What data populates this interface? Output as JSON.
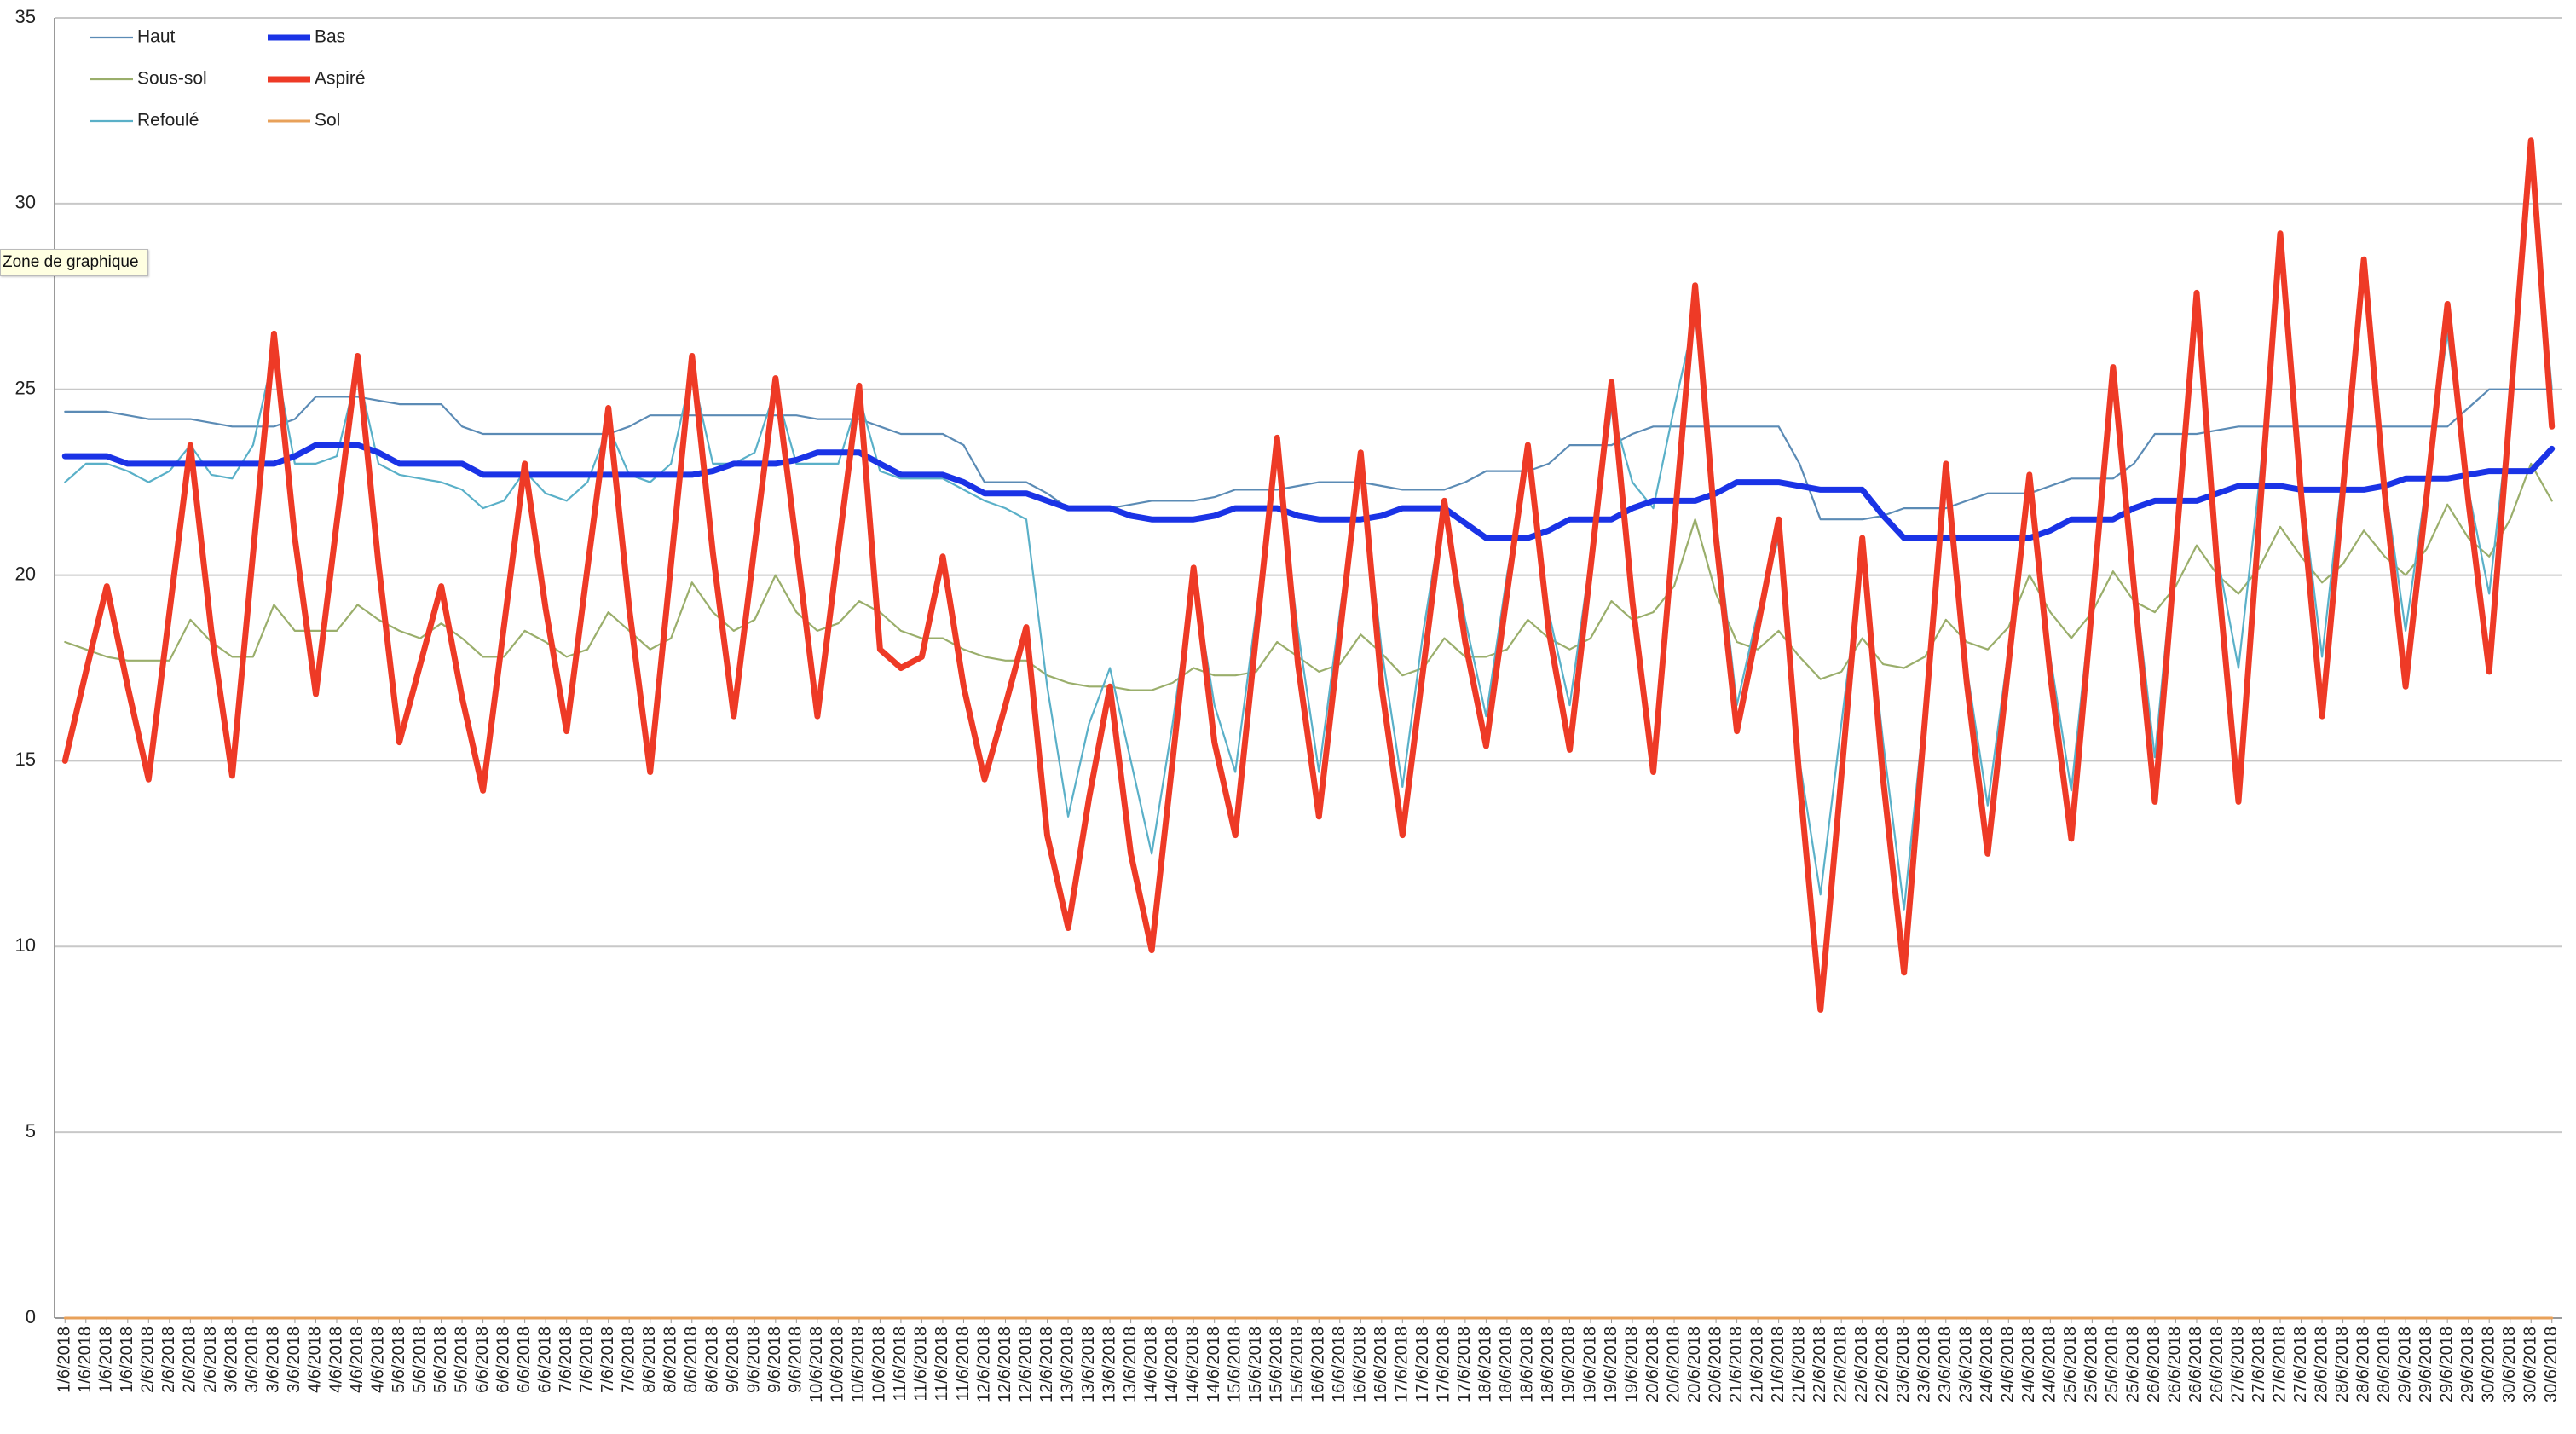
{
  "tooltip": "Zone de graphique",
  "chart_data": {
    "type": "line",
    "categories": [
      "1/6/2018",
      "1/6/2018",
      "1/6/2018",
      "1/6/2018",
      "2/6/2018",
      "2/6/2018",
      "2/6/2018",
      "2/6/2018",
      "3/6/2018",
      "3/6/2018",
      "3/6/2018",
      "3/6/2018",
      "4/6/2018",
      "4/6/2018",
      "4/6/2018",
      "4/6/2018",
      "5/6/2018",
      "5/6/2018",
      "5/6/2018",
      "5/6/2018",
      "6/6/2018",
      "6/6/2018",
      "6/6/2018",
      "6/6/2018",
      "7/6/2018",
      "7/6/2018",
      "7/6/2018",
      "7/6/2018",
      "8/6/2018",
      "8/6/2018",
      "8/6/2018",
      "8/6/2018",
      "9/6/2018",
      "9/6/2018",
      "9/6/2018",
      "9/6/2018",
      "10/6/2018",
      "10/6/2018",
      "10/6/2018",
      "10/6/2018",
      "11/6/2018",
      "11/6/2018",
      "11/6/2018",
      "11/6/2018",
      "12/6/2018",
      "12/6/2018",
      "12/6/2018",
      "12/6/2018",
      "13/6/2018",
      "13/6/2018",
      "13/6/2018",
      "13/6/2018",
      "14/6/2018",
      "14/6/2018",
      "14/6/2018",
      "14/6/2018",
      "15/6/2018",
      "15/6/2018",
      "15/6/2018",
      "15/6/2018",
      "16/6/2018",
      "16/6/2018",
      "16/6/2018",
      "16/6/2018",
      "17/6/2018",
      "17/6/2018",
      "17/6/2018",
      "17/6/2018",
      "18/6/2018",
      "18/6/2018",
      "18/6/2018",
      "18/6/2018",
      "19/6/2018",
      "19/6/2018",
      "19/6/2018",
      "19/6/2018",
      "20/6/2018",
      "20/6/2018",
      "20/6/2018",
      "20/6/2018",
      "21/6/2018",
      "21/6/2018",
      "21/6/2018",
      "21/6/2018",
      "22/6/2018",
      "22/6/2018",
      "22/6/2018",
      "22/6/2018",
      "23/6/2018",
      "23/6/2018",
      "23/6/2018",
      "23/6/2018",
      "24/6/2018",
      "24/6/2018",
      "24/6/2018",
      "24/6/2018",
      "25/6/2018",
      "25/6/2018",
      "25/6/2018",
      "25/6/2018",
      "26/6/2018",
      "26/6/2018",
      "26/6/2018",
      "26/6/2018",
      "27/6/2018",
      "27/6/2018",
      "27/6/2018",
      "27/6/2018",
      "28/6/2018",
      "28/6/2018",
      "28/6/2018",
      "28/6/2018",
      "29/6/2018",
      "29/6/2018",
      "29/6/2018",
      "29/6/2018",
      "30/6/2018",
      "30/6/2018",
      "30/6/2018",
      "30/6/2018"
    ],
    "series": [
      {
        "name": "Haut",
        "color": "#5b8bb5",
        "values": [
          24.4,
          24.4,
          24.4,
          24.3,
          24.2,
          24.2,
          24.2,
          24.1,
          24.0,
          24.0,
          24.0,
          24.2,
          24.8,
          24.8,
          24.8,
          24.7,
          24.6,
          24.6,
          24.6,
          24.0,
          23.8,
          23.8,
          23.8,
          23.8,
          23.8,
          23.8,
          23.8,
          24.0,
          24.3,
          24.3,
          24.3,
          24.3,
          24.3,
          24.3,
          24.3,
          24.3,
          24.2,
          24.2,
          24.2,
          24.0,
          23.8,
          23.8,
          23.8,
          23.5,
          22.5,
          22.5,
          22.5,
          22.2,
          21.8,
          21.8,
          21.8,
          21.9,
          22.0,
          22.0,
          22.0,
          22.1,
          22.3,
          22.3,
          22.3,
          22.4,
          22.5,
          22.5,
          22.5,
          22.4,
          22.3,
          22.3,
          22.3,
          22.5,
          22.8,
          22.8,
          22.8,
          23.0,
          23.5,
          23.5,
          23.5,
          23.8,
          24.0,
          24.0,
          24.0,
          24.0,
          24.0,
          24.0,
          24.0,
          23.0,
          21.5,
          21.5,
          21.5,
          21.6,
          21.8,
          21.8,
          21.8,
          22.0,
          22.2,
          22.2,
          22.2,
          22.4,
          22.6,
          22.6,
          22.6,
          23.0,
          23.8,
          23.8,
          23.8,
          23.9,
          24.0,
          24.0,
          24.0,
          24.0,
          24.0,
          24.0,
          24.0,
          24.0,
          24.0,
          24.0,
          24.0,
          24.5,
          25.0,
          25.0,
          25.0,
          25.0
        ]
      },
      {
        "name": "Bas",
        "color": "#1a33e6",
        "values": [
          23.2,
          23.2,
          23.2,
          23.0,
          23.0,
          23.0,
          23.0,
          23.0,
          23.0,
          23.0,
          23.0,
          23.2,
          23.5,
          23.5,
          23.5,
          23.3,
          23.0,
          23.0,
          23.0,
          23.0,
          22.7,
          22.7,
          22.7,
          22.7,
          22.7,
          22.7,
          22.7,
          22.7,
          22.7,
          22.7,
          22.7,
          22.8,
          23.0,
          23.0,
          23.0,
          23.1,
          23.3,
          23.3,
          23.3,
          23.0,
          22.7,
          22.7,
          22.7,
          22.5,
          22.2,
          22.2,
          22.2,
          22.0,
          21.8,
          21.8,
          21.8,
          21.6,
          21.5,
          21.5,
          21.5,
          21.6,
          21.8,
          21.8,
          21.8,
          21.6,
          21.5,
          21.5,
          21.5,
          21.6,
          21.8,
          21.8,
          21.8,
          21.4,
          21.0,
          21.0,
          21.0,
          21.2,
          21.5,
          21.5,
          21.5,
          21.8,
          22.0,
          22.0,
          22.0,
          22.2,
          22.5,
          22.5,
          22.5,
          22.4,
          22.3,
          22.3,
          22.3,
          21.6,
          21.0,
          21.0,
          21.0,
          21.0,
          21.0,
          21.0,
          21.0,
          21.2,
          21.5,
          21.5,
          21.5,
          21.8,
          22.0,
          22.0,
          22.0,
          22.2,
          22.4,
          22.4,
          22.4,
          22.3,
          22.3,
          22.3,
          22.3,
          22.4,
          22.6,
          22.6,
          22.6,
          22.7,
          22.8,
          22.8,
          22.8,
          23.4
        ]
      },
      {
        "name": "Sous-sol",
        "color": "#9aae6b",
        "values": [
          18.2,
          18.0,
          17.8,
          17.7,
          17.7,
          17.7,
          18.8,
          18.2,
          17.8,
          17.8,
          19.2,
          18.5,
          18.5,
          18.5,
          19.2,
          18.8,
          18.5,
          18.3,
          18.7,
          18.3,
          17.8,
          17.8,
          18.5,
          18.2,
          17.8,
          18.0,
          19.0,
          18.5,
          18.0,
          18.3,
          19.8,
          19.0,
          18.5,
          18.8,
          20.0,
          19.0,
          18.5,
          18.7,
          19.3,
          19.0,
          18.5,
          18.3,
          18.3,
          18.0,
          17.8,
          17.7,
          17.7,
          17.3,
          17.1,
          17.0,
          17.0,
          16.9,
          16.9,
          17.1,
          17.5,
          17.3,
          17.3,
          17.4,
          18.2,
          17.8,
          17.4,
          17.6,
          18.4,
          17.9,
          17.3,
          17.5,
          18.3,
          17.8,
          17.8,
          18.0,
          18.8,
          18.3,
          18.0,
          18.3,
          19.3,
          18.8,
          19.0,
          19.7,
          21.5,
          19.5,
          18.2,
          18.0,
          18.5,
          17.8,
          17.2,
          17.4,
          18.3,
          17.6,
          17.5,
          17.8,
          18.8,
          18.2,
          18.0,
          18.6,
          20.0,
          19.0,
          18.3,
          19.0,
          20.1,
          19.3,
          19.0,
          19.7,
          20.8,
          20.0,
          19.5,
          20.2,
          21.3,
          20.5,
          19.8,
          20.3,
          21.2,
          20.5,
          20.0,
          20.7,
          21.9,
          21.0,
          20.5,
          21.5,
          23.0,
          22.0
        ]
      },
      {
        "name": "Aspiré",
        "color": "#ee3a26",
        "values": [
          15.0,
          17.4,
          19.7,
          17.0,
          14.5,
          19.0,
          23.5,
          18.5,
          14.6,
          20.6,
          26.5,
          21.0,
          16.8,
          21.4,
          25.9,
          20.3,
          15.5,
          17.6,
          19.7,
          16.7,
          14.2,
          18.6,
          23.0,
          19.1,
          15.8,
          20.2,
          24.5,
          19.1,
          14.7,
          20.3,
          25.9,
          20.6,
          16.2,
          20.8,
          25.3,
          20.8,
          16.2,
          20.7,
          25.1,
          18.0,
          17.5,
          17.8,
          20.5,
          17.0,
          14.5,
          16.5,
          18.6,
          13.0,
          10.5,
          14.0,
          17.0,
          12.5,
          9.9,
          15.0,
          20.2,
          15.5,
          13.0,
          18.4,
          23.7,
          17.6,
          13.5,
          18.4,
          23.3,
          17.0,
          13.0,
          17.5,
          22.0,
          18.2,
          15.4,
          19.5,
          23.5,
          18.5,
          15.3,
          20.2,
          25.2,
          19.3,
          14.7,
          21.3,
          27.8,
          21.0,
          15.8,
          18.6,
          21.5,
          14.5,
          8.3,
          14.6,
          21.0,
          14.5,
          9.3,
          16.1,
          23.0,
          17.1,
          12.5,
          17.6,
          22.7,
          17.3,
          12.9,
          19.2,
          25.6,
          19.7,
          13.9,
          20.7,
          27.6,
          20.1,
          13.9,
          21.5,
          29.2,
          22.2,
          16.2,
          22.3,
          28.5,
          22.2,
          17.0,
          22.1,
          27.3,
          22.0,
          17.4,
          24.5,
          31.7,
          24.0
        ]
      },
      {
        "name": "Refoulé",
        "color": "#5ab0c8",
        "values": [
          22.5,
          23.0,
          23.0,
          22.8,
          22.5,
          22.8,
          23.5,
          22.7,
          22.6,
          23.5,
          26.0,
          23.0,
          23.0,
          23.2,
          25.5,
          23.0,
          22.7,
          22.6,
          22.5,
          22.3,
          21.8,
          22.0,
          22.8,
          22.2,
          22.0,
          22.5,
          24.0,
          22.7,
          22.5,
          23.0,
          25.5,
          23.0,
          23.0,
          23.3,
          25.0,
          23.0,
          23.0,
          23.0,
          24.8,
          22.8,
          22.6,
          22.6,
          22.6,
          22.3,
          22.0,
          21.8,
          21.5,
          17.0,
          13.5,
          16.0,
          17.5,
          15.0,
          12.5,
          16.0,
          20.0,
          16.5,
          14.7,
          19.0,
          23.2,
          18.5,
          14.7,
          19.0,
          23.0,
          18.0,
          14.3,
          18.5,
          22.0,
          18.8,
          16.2,
          20.0,
          23.2,
          19.0,
          16.5,
          20.5,
          24.5,
          22.5,
          21.8,
          24.5,
          27.0,
          21.5,
          16.5,
          19.0,
          21.0,
          15.0,
          11.4,
          16.0,
          20.5,
          15.5,
          11.0,
          16.5,
          22.5,
          17.5,
          13.8,
          18.0,
          22.5,
          17.8,
          14.2,
          19.5,
          25.0,
          20.0,
          15.1,
          21.0,
          27.0,
          20.5,
          17.5,
          22.5,
          28.5,
          22.5,
          17.8,
          22.8,
          28.0,
          22.5,
          18.5,
          22.5,
          26.5,
          22.3,
          19.5,
          24.5,
          31.0,
          25.0
        ]
      },
      {
        "name": "Sol",
        "color": "#e8a15a",
        "values": [
          0,
          0,
          0,
          0,
          0,
          0,
          0,
          0,
          0,
          0,
          0,
          0,
          0,
          0,
          0,
          0,
          0,
          0,
          0,
          0,
          0,
          0,
          0,
          0,
          0,
          0,
          0,
          0,
          0,
          0,
          0,
          0,
          0,
          0,
          0,
          0,
          0,
          0,
          0,
          0,
          0,
          0,
          0,
          0,
          0,
          0,
          0,
          0,
          0,
          0,
          0,
          0,
          0,
          0,
          0,
          0,
          0,
          0,
          0,
          0,
          0,
          0,
          0,
          0,
          0,
          0,
          0,
          0,
          0,
          0,
          0,
          0,
          0,
          0,
          0,
          0,
          0,
          0,
          0,
          0,
          0,
          0,
          0,
          0,
          0,
          0,
          0,
          0,
          0,
          0,
          0,
          0,
          0,
          0,
          0,
          0,
          0,
          0,
          0,
          0,
          0,
          0,
          0,
          0,
          0,
          0,
          0,
          0,
          0,
          0,
          0,
          0,
          0,
          0,
          0,
          0,
          0,
          0,
          0,
          0
        ]
      }
    ],
    "ylim": [
      0,
      35
    ],
    "yticks": [
      0,
      5,
      10,
      15,
      20,
      25,
      30,
      35
    ],
    "grid": true,
    "legend": "top-left"
  }
}
